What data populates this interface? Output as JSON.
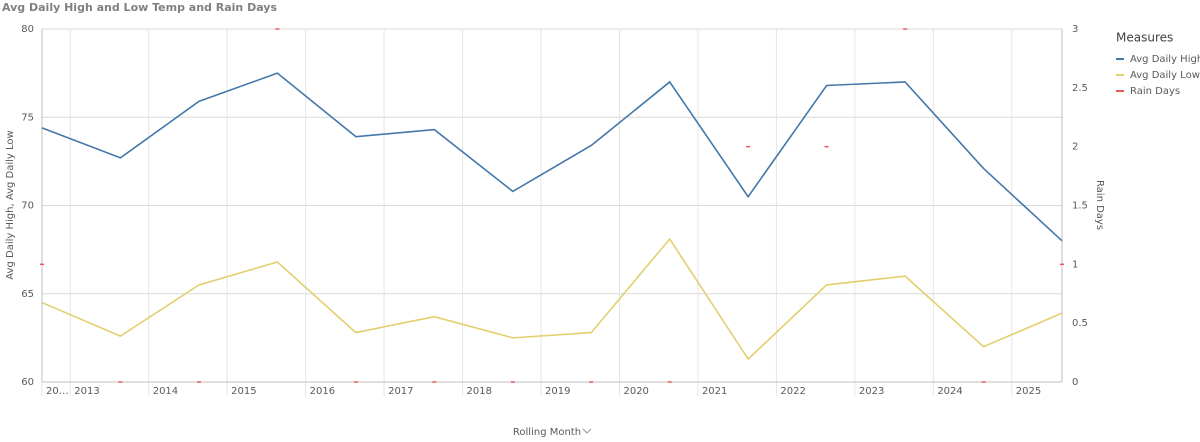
{
  "chart_data": {
    "type": "line",
    "title": "Avg Daily High and Low Temp and Rain Days",
    "x_label": "Rolling Month",
    "y_label": "Avg Daily High, Avg Daily Low",
    "y2_label": "Rain Days",
    "legend_title": "Measures",
    "legend": "top-right",
    "grid": true,
    "x": [
      0,
      1,
      2,
      3,
      4,
      5,
      6,
      7,
      8,
      9,
      10,
      11,
      12,
      13
    ],
    "xlim": [
      0,
      13
    ],
    "xticks": [
      {
        "value": 0,
        "label": "20…"
      },
      {
        "value": 0.36,
        "label": "2013"
      },
      {
        "value": 1.36,
        "label": "2014"
      },
      {
        "value": 2.36,
        "label": "2015"
      },
      {
        "value": 3.36,
        "label": "2016"
      },
      {
        "value": 4.36,
        "label": "2017"
      },
      {
        "value": 5.36,
        "label": "2018"
      },
      {
        "value": 6.36,
        "label": "2019"
      },
      {
        "value": 7.36,
        "label": "2020"
      },
      {
        "value": 8.36,
        "label": "2021"
      },
      {
        "value": 9.36,
        "label": "2022"
      },
      {
        "value": 10.36,
        "label": "2023"
      },
      {
        "value": 11.36,
        "label": "2024"
      },
      {
        "value": 12.36,
        "label": "2025"
      }
    ],
    "ylim": [
      60,
      80
    ],
    "yticks": [
      60,
      65,
      70,
      75,
      80
    ],
    "y2lim": [
      0,
      3
    ],
    "y2ticks": [
      0,
      0.5,
      1,
      1.5,
      2,
      2.5,
      3
    ],
    "series": [
      {
        "name": "Avg Daily High",
        "color": "#4477aa",
        "values": [
          74.4,
          72.7,
          75.9,
          77.5,
          73.9,
          74.3,
          70.8,
          73.4,
          77.0,
          70.5,
          76.8,
          77.0,
          72.1,
          68.0
        ]
      },
      {
        "name": "Avg Daily Low",
        "color": "#e3cf6d",
        "values": [
          64.5,
          62.6,
          65.5,
          66.8,
          62.8,
          63.7,
          62.5,
          62.8,
          68.1,
          61.3,
          65.5,
          66.0,
          62.0,
          63.9
        ]
      },
      {
        "name": "Rain Days",
        "color": "#e8575a",
        "axis": "y2",
        "marker": "dash",
        "values": [
          1,
          0,
          0,
          3,
          0,
          0,
          0,
          0,
          0,
          2,
          2,
          3,
          0,
          1
        ]
      }
    ]
  }
}
